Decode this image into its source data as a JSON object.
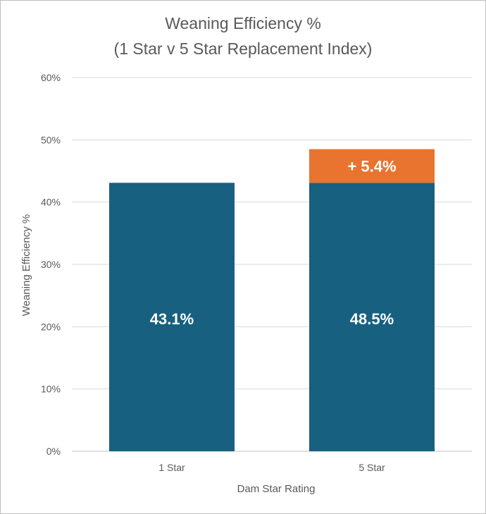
{
  "chart_data": {
    "type": "bar",
    "stacked": true,
    "title": "Weaning Efficiency %",
    "subtitle": "(1 Star v 5 Star Replacement Index)",
    "xlabel": "Dam Star Rating",
    "ylabel": "Weaning Efficiency %",
    "categories": [
      "1 Star",
      "5 Star"
    ],
    "series": [
      {
        "values": [
          43.1,
          43.1
        ],
        "color": "#17607f"
      },
      {
        "values": [
          0,
          5.4
        ],
        "color": "#e8742f"
      }
    ],
    "totals": [
      43.1,
      48.5
    ],
    "total_labels": [
      "43.1%",
      "48.5%"
    ],
    "increment_label": "+ 5.4%",
    "ylim": [
      0,
      60
    ],
    "yticks": [
      0,
      10,
      20,
      30,
      40,
      50,
      60
    ],
    "ytick_labels": [
      "0%",
      "10%",
      "20%",
      "30%",
      "40%",
      "50%",
      "60%"
    ],
    "grid": true,
    "legend": "none"
  }
}
